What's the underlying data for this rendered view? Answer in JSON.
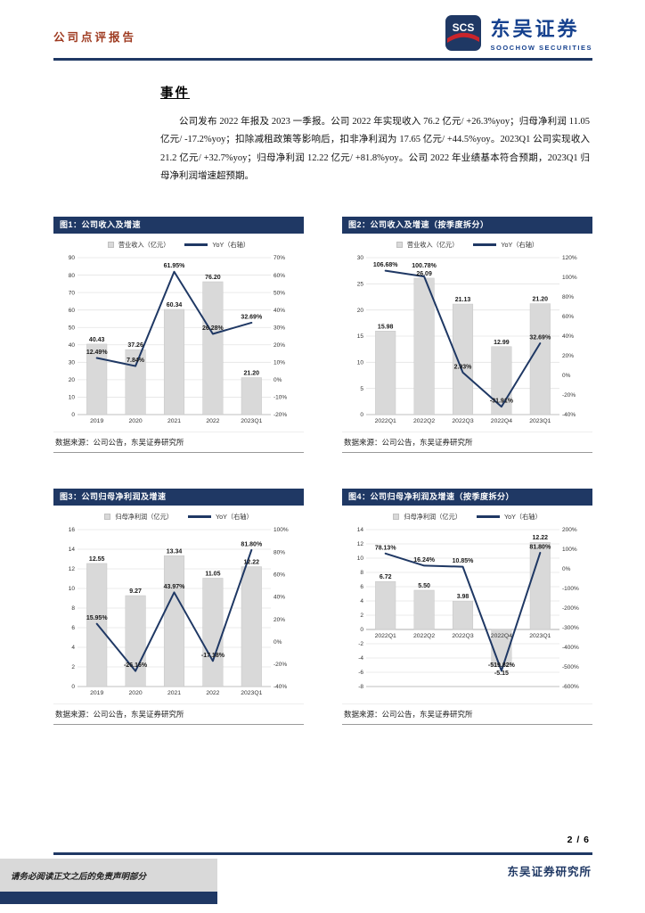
{
  "header": {
    "report_type": "公司点评报告",
    "logo": {
      "icon": "scs-emblem",
      "icon_text": "SCS",
      "brand_cn": "东吴证券",
      "brand_en": "SOOCHOW SECURITIES"
    }
  },
  "event": {
    "title": "事件",
    "body": "公司发布 2022 年报及 2023 一季报。公司 2022 年实现收入 76.2 亿元/ +26.3%yoy；归母净利润 11.05 亿元/ -17.2%yoy；扣除减租政策等影响后，扣非净利润为 17.65 亿元/ +44.5%yoy。2023Q1 公司实现收入 21.2 亿元/ +32.7%yoy；归母净利润 12.22 亿元/ +81.8%yoy。公司 2022 年业绩基本符合预期，2023Q1 归母净利润增速超预期。"
  },
  "source_note": "数据来源：公司公告，东吴证券研究所",
  "footer": {
    "page": "2 / 6",
    "institute": "东吴证券研究所",
    "disclaimer": "请务必阅读正文之后的免责声明部分"
  },
  "colors": {
    "navy": "#1f3864",
    "bar_gray": "#d9d9d9",
    "bar_stroke": "#c6c6c6",
    "header_red": "#9e3a20",
    "brand_blue": "#16418e",
    "logo_red": "#c9252c"
  },
  "chart_data": [
    {
      "type": "bar",
      "subtype": "bar+line dual-axis",
      "title": "图1：公司收入及增速",
      "legend": [
        "营业收入（亿元）",
        "YoY（右轴）"
      ],
      "legend_position": "top",
      "grid": true,
      "categories": [
        "2019",
        "2020",
        "2021",
        "2022",
        "2023Q1"
      ],
      "series": [
        {
          "name": "营业收入（亿元）",
          "type": "bar",
          "axis": "left",
          "values": [
            40.43,
            37.26,
            60.34,
            76.2,
            21.2
          ]
        },
        {
          "name": "YoY（右轴）",
          "type": "line",
          "axis": "right",
          "unit": "%",
          "values": [
            12.49,
            7.84,
            61.95,
            26.28,
            32.69
          ]
        }
      ],
      "left_axis": {
        "min": 0,
        "max": 90,
        "step": 10
      },
      "right_axis": {
        "min": -20,
        "max": 70,
        "step": 10
      }
    },
    {
      "type": "bar",
      "subtype": "bar+line dual-axis",
      "title": "图2：公司收入及增速（按季度拆分）",
      "legend": [
        "营业收入（亿元）",
        "YoY（右轴）"
      ],
      "legend_position": "top",
      "grid": true,
      "categories": [
        "2022Q1",
        "2022Q2",
        "2022Q3",
        "2022Q4",
        "2023Q1"
      ],
      "series": [
        {
          "name": "营业收入（亿元）",
          "type": "bar",
          "axis": "left",
          "values": [
            15.98,
            26.09,
            21.13,
            12.99,
            21.2
          ]
        },
        {
          "name": "YoY（右轴）",
          "type": "line",
          "axis": "right",
          "unit": "%",
          "values": [
            106.68,
            100.78,
            2.93,
            -31.91,
            32.69
          ]
        }
      ],
      "left_axis": {
        "min": 0,
        "max": 30,
        "step": 5
      },
      "right_axis": {
        "min": -40,
        "max": 120,
        "step": 20
      }
    },
    {
      "type": "bar",
      "subtype": "bar+line dual-axis",
      "title": "图3：公司归母净利润及增速",
      "legend": [
        "归母净利润（亿元）",
        "YoY（右轴）"
      ],
      "legend_position": "top",
      "grid": true,
      "categories": [
        "2019",
        "2020",
        "2021",
        "2022",
        "2023Q1"
      ],
      "series": [
        {
          "name": "归母净利润（亿元）",
          "type": "bar",
          "axis": "left",
          "values": [
            12.55,
            9.27,
            13.34,
            11.05,
            12.22
          ]
        },
        {
          "name": "YoY（右轴）",
          "type": "line",
          "axis": "right",
          "unit": "%",
          "values": [
            15.95,
            -26.16,
            43.97,
            -17.18,
            81.8
          ]
        }
      ],
      "left_axis": {
        "min": 0,
        "max": 16,
        "step": 2
      },
      "right_axis": {
        "min": -40,
        "max": 100,
        "step": 20
      }
    },
    {
      "type": "bar",
      "subtype": "bar+line dual-axis",
      "title": "图4：公司归母净利润及增速（按季度拆分）",
      "legend": [
        "归母净利润（亿元）",
        "YoY（右轴）"
      ],
      "legend_position": "top",
      "grid": true,
      "categories": [
        "2022Q1",
        "2022Q2",
        "2022Q3",
        "2022Q4",
        "2023Q1"
      ],
      "series": [
        {
          "name": "归母净利润（亿元）",
          "type": "bar",
          "axis": "left",
          "values": [
            6.72,
            5.5,
            3.98,
            -5.15,
            12.22
          ]
        },
        {
          "name": "YoY（右轴）",
          "type": "line",
          "axis": "right",
          "unit": "%",
          "values": [
            78.13,
            16.24,
            10.85,
            -519.82,
            81.8
          ]
        }
      ],
      "left_axis": {
        "min": -8,
        "max": 14,
        "step": 2
      },
      "right_axis": {
        "min": -600,
        "max": 200,
        "step": 100
      }
    }
  ]
}
